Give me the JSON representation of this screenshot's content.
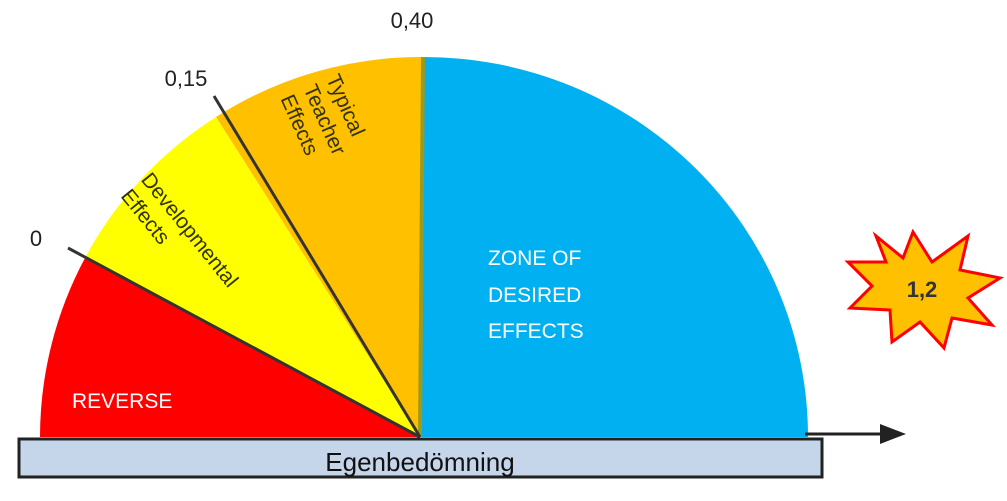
{
  "diagram": {
    "ticks": [
      "0",
      "0,15",
      "0,40"
    ],
    "zones": [
      {
        "label": "REVERSE",
        "color": "#ff0000"
      },
      {
        "label": "Developmental Effects",
        "lines": [
          "Developmental",
          "Effects"
        ],
        "color": "#ffff00"
      },
      {
        "label": "Typical Teacher Effects",
        "lines": [
          "Typical",
          "Teacher",
          "Effects"
        ],
        "color": "#ffc000"
      },
      {
        "label": "ZONE OF DESIRED EFFECTS",
        "lines": [
          "ZONE OF",
          "DESIRED",
          "EFFECTS"
        ],
        "color": "#00b0f0"
      }
    ],
    "burst": {
      "label": "1,2",
      "fill": "#ffc000",
      "outline": "#ff0000"
    },
    "bar": {
      "label": "Egenbedömning",
      "fill": "#c5d5ea",
      "border": "#222222"
    },
    "colors": {
      "divider": "#333333",
      "arrow": "#222222"
    }
  }
}
